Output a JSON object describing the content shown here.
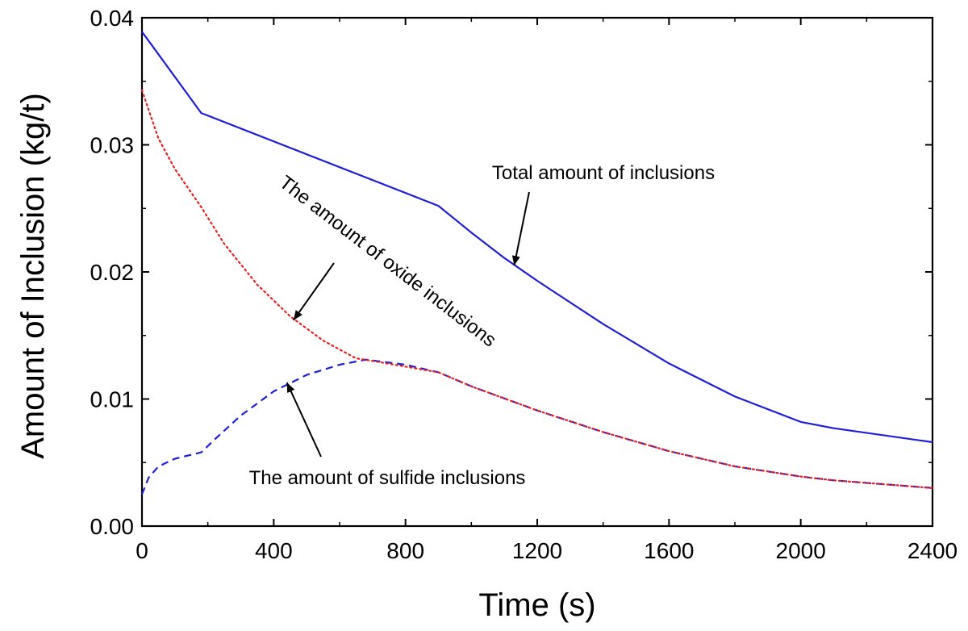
{
  "chart_data": {
    "type": "line",
    "title": "",
    "xlabel": "Time (s)",
    "ylabel": "Amount of Inclusion (kg/t)",
    "xlim": [
      0,
      2400
    ],
    "ylim": [
      0.0,
      0.04
    ],
    "x_ticks": [
      0,
      400,
      800,
      1200,
      1600,
      2000,
      2400
    ],
    "x_tick_labels": [
      "0",
      "400",
      "800",
      "1200",
      "1600",
      "2000",
      "2400"
    ],
    "y_ticks": [
      0.0,
      0.01,
      0.02,
      0.03,
      0.04
    ],
    "y_tick_labels": [
      "0.00",
      "0.01",
      "0.02",
      "0.03",
      "0.04"
    ],
    "grid": false,
    "series": [
      {
        "key": "total",
        "color": "#1f1fd6",
        "style": "solid",
        "x": [
          0,
          180,
          900,
          1000,
          1100,
          1200,
          1400,
          1600,
          1800,
          2000,
          2100,
          2400
        ],
        "y": [
          0.0389,
          0.0325,
          0.0252,
          0.0231,
          0.0211,
          0.0193,
          0.0159,
          0.0128,
          0.0102,
          0.0082,
          0.0077,
          0.0066
        ]
      },
      {
        "key": "oxide",
        "color": "#e82020",
        "style": "dotted",
        "x": [
          0,
          50,
          100,
          180,
          250,
          350,
          450,
          550,
          650,
          700,
          900,
          1000,
          1200,
          1400,
          1600,
          1800,
          2000,
          2100,
          2400
        ],
        "y": [
          0.0343,
          0.0305,
          0.0281,
          0.0251,
          0.0222,
          0.019,
          0.0165,
          0.0146,
          0.0132,
          0.013,
          0.0121,
          0.011,
          0.0091,
          0.0074,
          0.0059,
          0.0047,
          0.0039,
          0.0036,
          0.003
        ]
      },
      {
        "key": "sulfide",
        "color": "#1f1fd6",
        "style": "dashed",
        "x": [
          0,
          20,
          50,
          100,
          180,
          220,
          300,
          400,
          500,
          600,
          680,
          800,
          900,
          1000,
          1200,
          1400,
          1600,
          1800,
          2000,
          2100,
          2400
        ],
        "y": [
          0.0025,
          0.0038,
          0.0047,
          0.0053,
          0.0058,
          0.0068,
          0.0087,
          0.0106,
          0.0119,
          0.0127,
          0.0131,
          0.0127,
          0.0121,
          0.011,
          0.0091,
          0.0074,
          0.0059,
          0.0047,
          0.0039,
          0.0036,
          0.003
        ]
      }
    ],
    "annotations": [
      {
        "key": "total",
        "text": "Total amount of inclusions",
        "arrow_to": [
          1130,
          0.0205
        ]
      },
      {
        "key": "oxide",
        "text": "The amount of oxide inclusions",
        "arrow_to": [
          460,
          0.0162
        ]
      },
      {
        "key": "sulfide",
        "text": "The amount of sulfide inclusions",
        "arrow_to": [
          440,
          0.0113
        ]
      }
    ]
  }
}
